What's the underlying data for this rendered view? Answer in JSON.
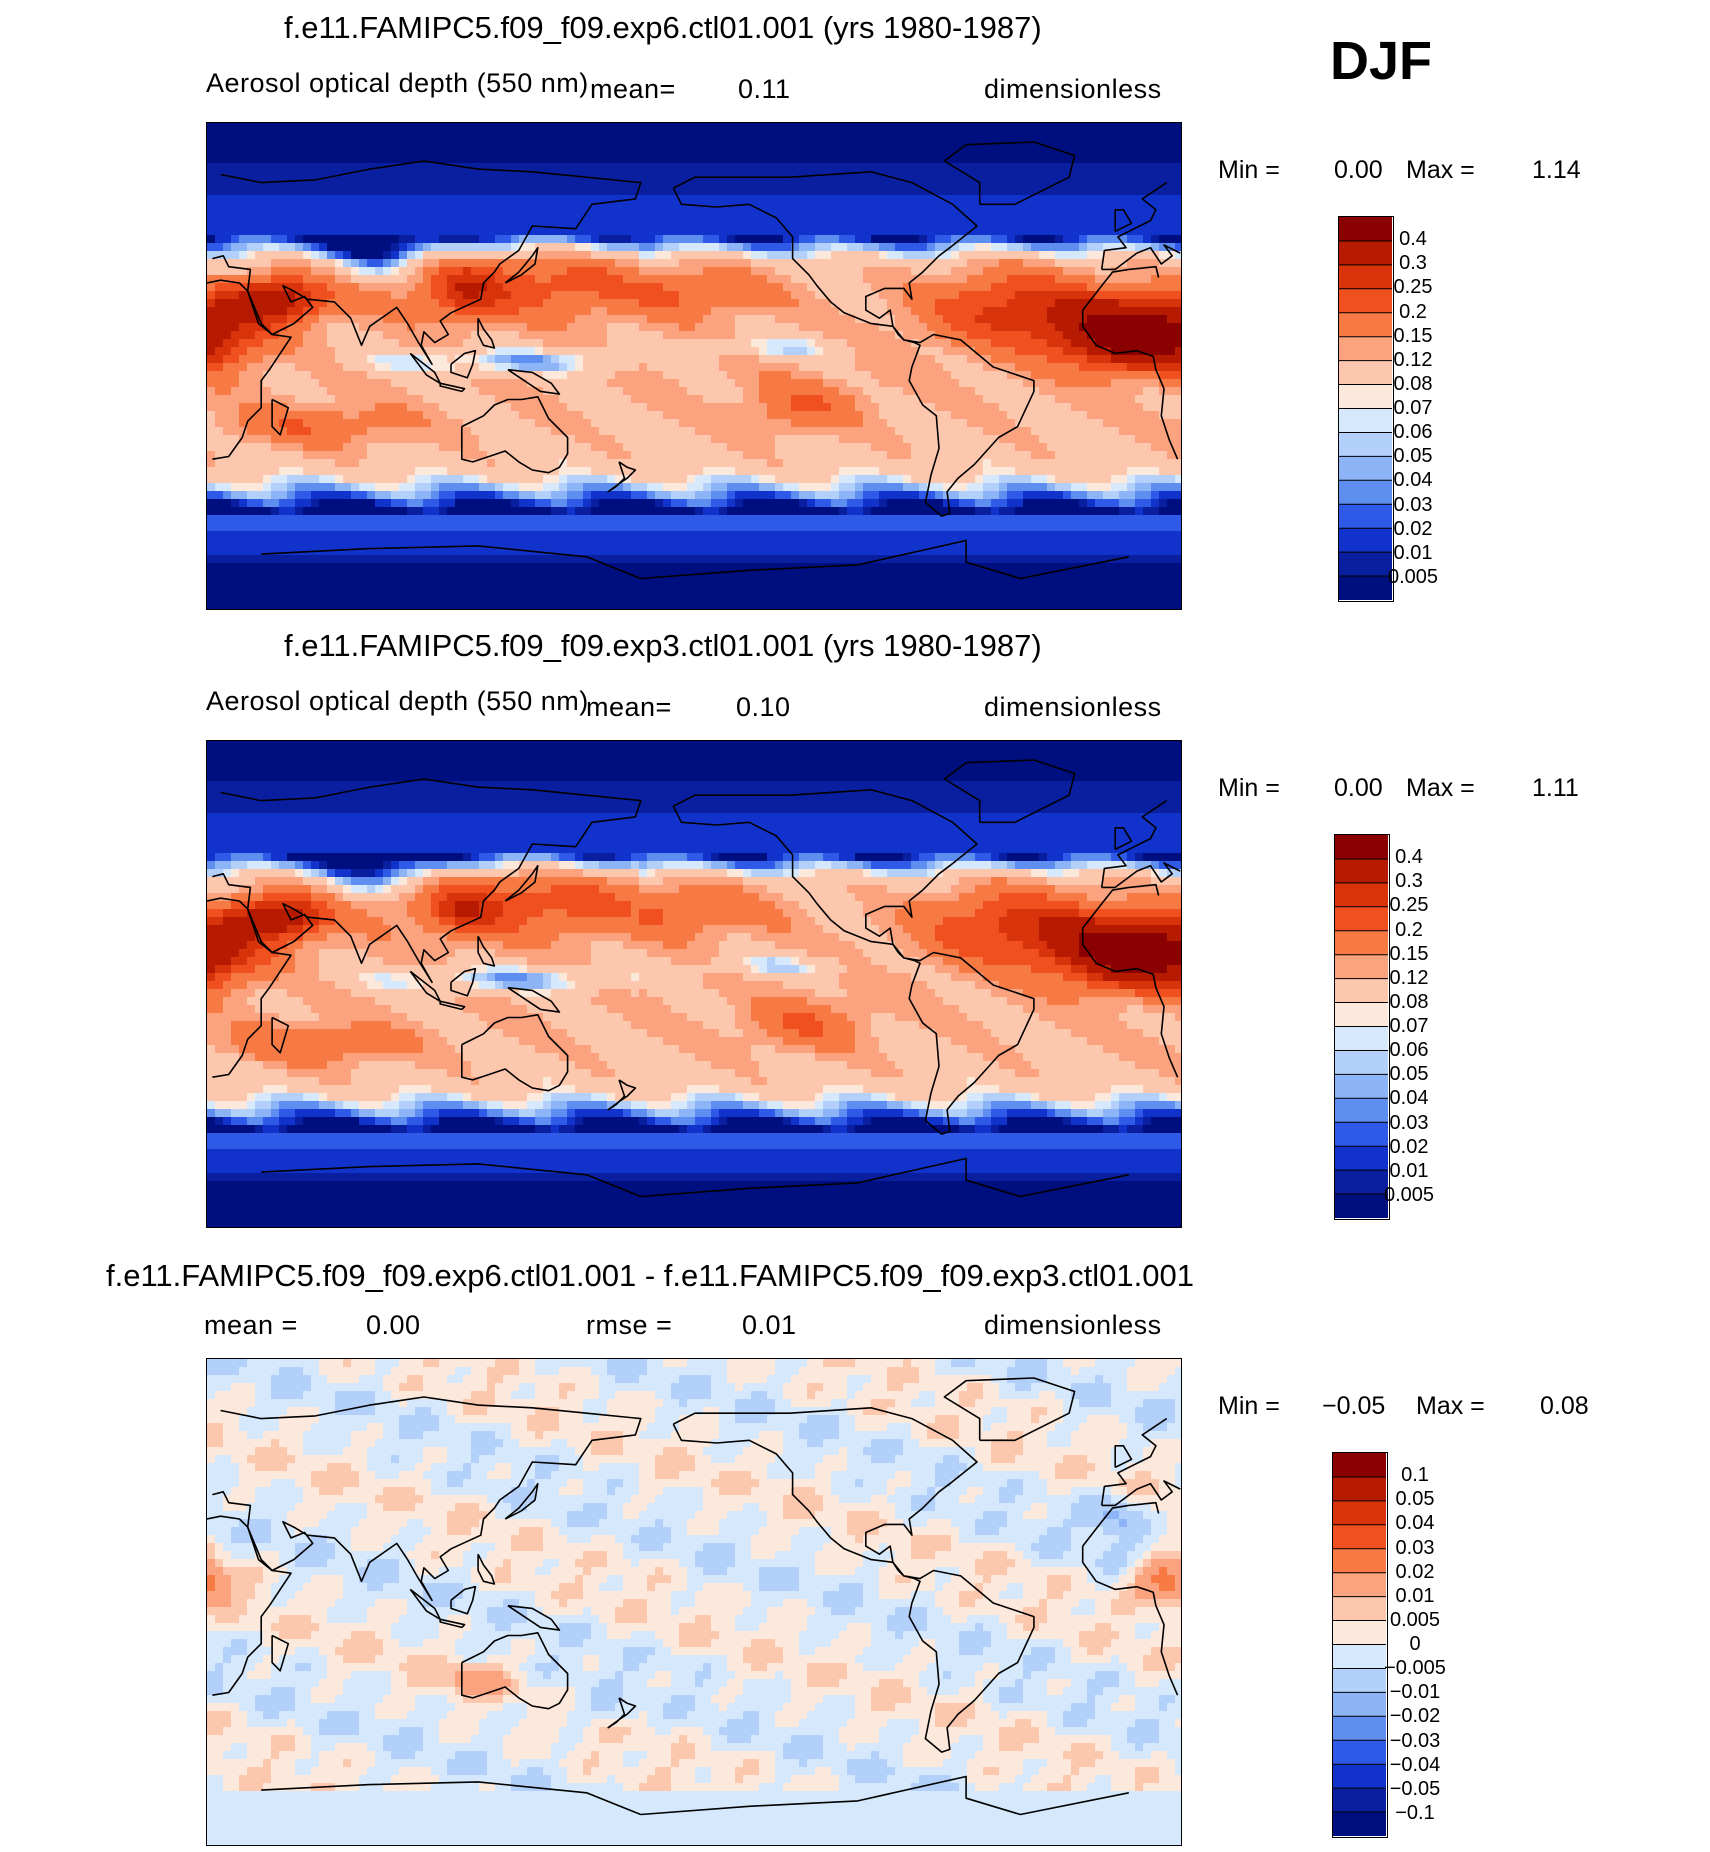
{
  "season": "DJF",
  "panels": [
    {
      "title": "f.e11.FAMIPC5.f09_f09.exp6.ctl01.001 (yrs 1980-1987)",
      "variable": "Aerosol optical depth (550 nm)",
      "mean_label": "mean=",
      "mean_value": "0.11",
      "units": "dimensionless",
      "min_label": "Min  =",
      "min_value": "0.00",
      "max_label": "Max  =",
      "max_value": "1.14",
      "mode": "abs"
    },
    {
      "title": "f.e11.FAMIPC5.f09_f09.exp3.ctl01.001 (yrs 1980-1987)",
      "variable": "Aerosol optical depth (550 nm)",
      "mean_label": "mean=",
      "mean_value": "0.10",
      "units": "dimensionless",
      "min_label": "Min  =",
      "min_value": "0.00",
      "max_label": "Max  =",
      "max_value": "1.11",
      "mode": "abs"
    },
    {
      "title": "f.e11.FAMIPC5.f09_f09.exp6.ctl01.001 - f.e11.FAMIPC5.f09_f09.exp3.ctl01.001",
      "mean_label": "mean  =",
      "mean_value": "0.00",
      "rmse_label": "rmse  =",
      "rmse_value": "0.01",
      "units": "dimensionless",
      "min_label": "Min  =",
      "min_value": "−0.05",
      "max_label": "Max  =",
      "max_value": "0.08",
      "mode": "diff"
    }
  ],
  "colorbars": {
    "abs": {
      "labels": [
        "0.4",
        "0.3",
        "0.25",
        "0.2",
        "0.15",
        "0.12",
        "0.08",
        "0.07",
        "0.06",
        "0.05",
        "0.04",
        "0.03",
        "0.02",
        "0.01",
        "0.005"
      ],
      "colors": [
        "#8b0000",
        "#b61a00",
        "#d8330a",
        "#f05020",
        "#f77a45",
        "#fba27f",
        "#fdc7ad",
        "#fde9dc",
        "#d6e8fb",
        "#b3d0fa",
        "#8db4f6",
        "#5e8ef0",
        "#2f5ae8",
        "#1133cc",
        "#0a1fa0",
        "#000f80"
      ]
    },
    "diff": {
      "labels": [
        "0.1",
        "0.05",
        "0.04",
        "0.03",
        "0.02",
        "0.01",
        "0.005",
        "0",
        "−0.005",
        "−0.01",
        "−0.02",
        "−0.03",
        "−0.04",
        "−0.05",
        "−0.1"
      ],
      "colors": [
        "#8b0000",
        "#b61a00",
        "#d8330a",
        "#f05020",
        "#f77a45",
        "#fba27f",
        "#fdc7ad",
        "#fde9dc",
        "#d6e8fb",
        "#b3d0fa",
        "#8db4f6",
        "#5e8ef0",
        "#2f5ae8",
        "#1133cc",
        "#0a1fa0",
        "#000f80"
      ]
    }
  },
  "chart_data": [
    {
      "type": "heatmap",
      "title": "f.e11.FAMIPC5.f09_f09.exp6.ctl01.001 (yrs 1980-1987)",
      "variable": "Aerosol optical depth (550 nm)",
      "mean": 0.11,
      "min": 0.0,
      "max": 1.14,
      "units": "dimensionless",
      "levels": [
        0.005,
        0.01,
        0.02,
        0.03,
        0.04,
        0.05,
        0.06,
        0.07,
        0.08,
        0.12,
        0.15,
        0.2,
        0.25,
        0.3,
        0.4
      ]
    },
    {
      "type": "heatmap",
      "title": "f.e11.FAMIPC5.f09_f09.exp3.ctl01.001 (yrs 1980-1987)",
      "variable": "Aerosol optical depth (550 nm)",
      "mean": 0.1,
      "min": 0.0,
      "max": 1.11,
      "units": "dimensionless",
      "levels": [
        0.005,
        0.01,
        0.02,
        0.03,
        0.04,
        0.05,
        0.06,
        0.07,
        0.08,
        0.12,
        0.15,
        0.2,
        0.25,
        0.3,
        0.4
      ]
    },
    {
      "type": "heatmap",
      "title": "f.e11.FAMIPC5.f09_f09.exp6.ctl01.001 - f.e11.FAMIPC5.f09_f09.exp3.ctl01.001",
      "mean": 0.0,
      "rmse": 0.01,
      "min": -0.05,
      "max": 0.08,
      "units": "dimensionless",
      "levels": [
        -0.1,
        -0.05,
        -0.04,
        -0.03,
        -0.02,
        -0.01,
        -0.005,
        0,
        0.005,
        0.01,
        0.02,
        0.03,
        0.04,
        0.05,
        0.1
      ]
    }
  ]
}
